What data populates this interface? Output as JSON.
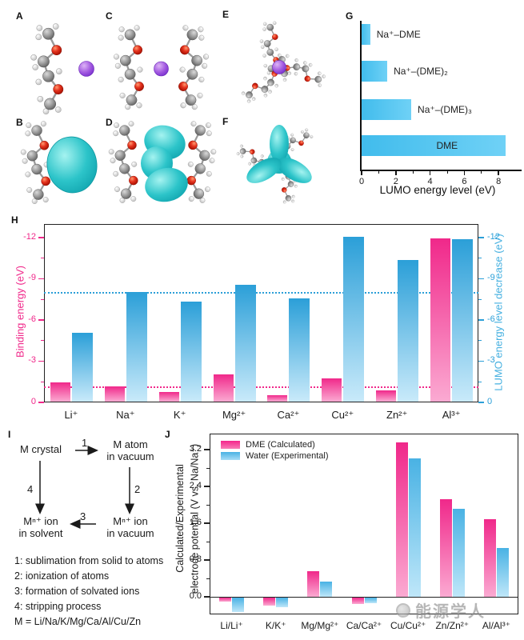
{
  "panels": {
    "a": "A",
    "b": "B",
    "c": "C",
    "d": "D",
    "e": "E",
    "f": "F",
    "g": "G",
    "h": "H",
    "i": "I",
    "j": "J"
  },
  "watermark": {
    "text": "能源学人"
  },
  "diagram": {
    "node_crystal": "M crystal",
    "node_atom_l1": "M atom",
    "node_atom_l2": "in vacuum",
    "node_ion_solvent_l1": "Mⁿ⁺ ion",
    "node_ion_solvent_l2": "in solvent",
    "node_ion_vacuum_l1": "Mⁿ⁺ ion",
    "node_ion_vacuum_l2": "in vacuum",
    "arrow1": "1",
    "arrow2": "2",
    "arrow3": "3",
    "arrow4": "4",
    "notes": [
      "1: sublimation from solid to atoms",
      "2: ionization of atoms",
      "3: formation of solvated ions",
      "4: stripping process",
      "M = Li/Na/K/Mg/Ca/Al/Cu/Zn"
    ]
  },
  "chart_data": [
    {
      "id": "G",
      "type": "bar",
      "orientation": "horizontal",
      "categories": [
        "Na⁺–DME",
        "Na⁺–(DME)₂",
        "Na⁺–(DME)₃",
        "DME"
      ],
      "values": [
        0.5,
        1.5,
        2.9,
        8.4
      ],
      "xlabel": "LUMO energy level (eV)",
      "xticks": [
        0,
        2,
        4,
        6,
        8
      ],
      "xminorticks": [
        1,
        3,
        5,
        7
      ],
      "xlim": [
        0,
        9.3
      ],
      "bar_color": "#41bcec",
      "bar_color_light": "#6fd1f6",
      "grid": false,
      "legend_position": "none"
    },
    {
      "id": "H",
      "type": "bar",
      "categories": [
        "Li⁺",
        "Na⁺",
        "K⁺",
        "Mg²⁺",
        "Ca²⁺",
        "Cu²⁺",
        "Zn²⁺",
        "Al³⁺"
      ],
      "series": [
        {
          "name": "Binding energy",
          "axis": "left",
          "color": "#f0288a",
          "color_light": "#fbaad2",
          "values": [
            -1.4,
            -1.1,
            -0.7,
            -2.0,
            -0.45,
            -1.7,
            -0.8,
            -11.9
          ]
        },
        {
          "name": "LUMO energy level decrease",
          "axis": "right",
          "color": "#2b9fd8",
          "color_light": "#c9eafa",
          "values": [
            -5.0,
            -8.0,
            -7.3,
            -8.5,
            -7.5,
            -12.0,
            -10.3,
            -11.8
          ]
        }
      ],
      "ylabel_left": "Binding energy (eV)",
      "ylabel_right": "LUMO energy level decrease (eV)",
      "yticks": [
        0,
        -3,
        -6,
        -9,
        -12
      ],
      "yminorticks": [
        -1.5,
        -4.5,
        -7.5,
        -10.5
      ],
      "ylim": [
        0,
        -13
      ],
      "ref_lines": [
        {
          "value": -1.1,
          "color": "#f0288a"
        },
        {
          "value": -8.0,
          "color": "#2b9fd8"
        }
      ],
      "grid": false,
      "legend_position": "none"
    },
    {
      "id": "J",
      "type": "bar",
      "categories": [
        "Li/Li⁺",
        "K/K⁺",
        "Mg/Mg²⁺",
        "Ca/Ca²⁺",
        "Cu/Cu²⁺",
        "Zn/Zn²⁺",
        "Al/Al³⁺"
      ],
      "series": [
        {
          "name": "DME (Calculated)",
          "color": "#f0288a",
          "color_light": "#fbaad2",
          "values": [
            -0.09,
            -0.17,
            0.56,
            -0.14,
            3.36,
            2.12,
            1.69
          ]
        },
        {
          "name": "Water (Experimental)",
          "color": "#49b2e4",
          "color_light": "#bfe7f9",
          "values": [
            -0.3,
            -0.21,
            0.33,
            -0.12,
            3.01,
            1.91,
            1.06
          ]
        }
      ],
      "ylabel_line1": "Calculated/Experimental",
      "ylabel_line2": "electrode potential (V vs. Na/Na⁺)",
      "yticks": [
        "3.2",
        "2.4",
        "1.6",
        "0.8",
        "0.0"
      ],
      "yminorticks": [
        0.4,
        1.2,
        2.0,
        2.8
      ],
      "ylim": [
        -0.4,
        3.55
      ],
      "grid": false,
      "legend_position": "top-left"
    }
  ]
}
